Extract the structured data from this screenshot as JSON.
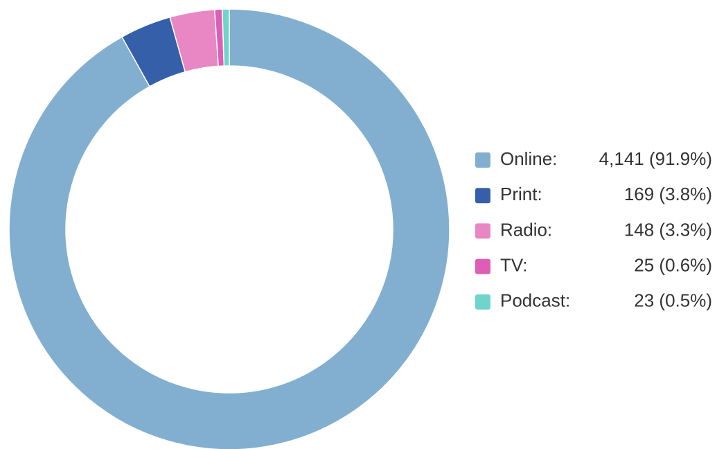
{
  "chart_data": {
    "type": "donut",
    "categories": [
      "Online:",
      "Print:",
      "Radio:",
      "TV:",
      "Podcast:"
    ],
    "values": [
      4141,
      169,
      148,
      25,
      23
    ],
    "value_labels": [
      "4,141 (91.9%)",
      "169 (3.8%)",
      "148 (3.3%)",
      "25 (0.6%)",
      "23 (0.5%)"
    ],
    "colors": [
      "#82afd0",
      "#3560a9",
      "#e987c4",
      "#de5eb7",
      "#6fd4cc"
    ],
    "legend": "right"
  }
}
